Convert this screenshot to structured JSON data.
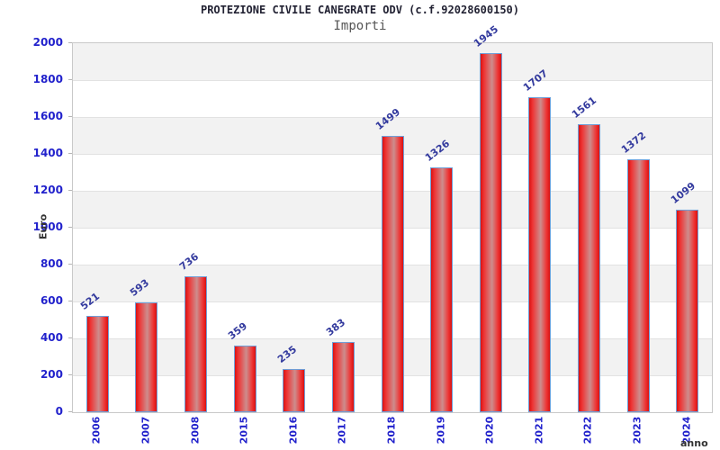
{
  "header": {
    "title": "PROTEZIONE CIVILE CANEGRATE ODV (c.f.92028600150)",
    "subtitle": "Importi"
  },
  "chart_data": {
    "type": "bar",
    "title": "PROTEZIONE CIVILE CANEGRATE ODV (c.f.92028600150)",
    "subtitle": "Importi",
    "categories": [
      "2006",
      "2007",
      "2008",
      "2015",
      "2016",
      "2017",
      "2018",
      "2019",
      "2020",
      "2021",
      "2022",
      "2023",
      "2024"
    ],
    "values": [
      521,
      593,
      736,
      359,
      235,
      383,
      1499,
      1326,
      1945,
      1707,
      1561,
      1372,
      1099
    ],
    "xlabel": "anno",
    "ylabel": "Euro",
    "ylim": [
      0,
      2000
    ],
    "ytick_step": 200,
    "ytick_labels": [
      "0",
      "200",
      "400",
      "600",
      "800",
      "1000",
      "1200",
      "1400",
      "1600",
      "1800",
      "2000"
    ],
    "grid": "horizontal alternating bands, gridline every 200",
    "legend": "none",
    "colors": {
      "bar_fill": "#d91111",
      "bar_highlight": "#cd8d8d",
      "bar_border": "#6f9fd8",
      "tick_label": "#2222cc",
      "value_label": "#333a9e",
      "band_gray": "#f2f2f2",
      "band_white": "#ffffff",
      "plot_border": "#c9c9c9",
      "title_color": "#222233",
      "subtitle_color": "#555555",
      "axis_title_color": "#333333"
    }
  }
}
